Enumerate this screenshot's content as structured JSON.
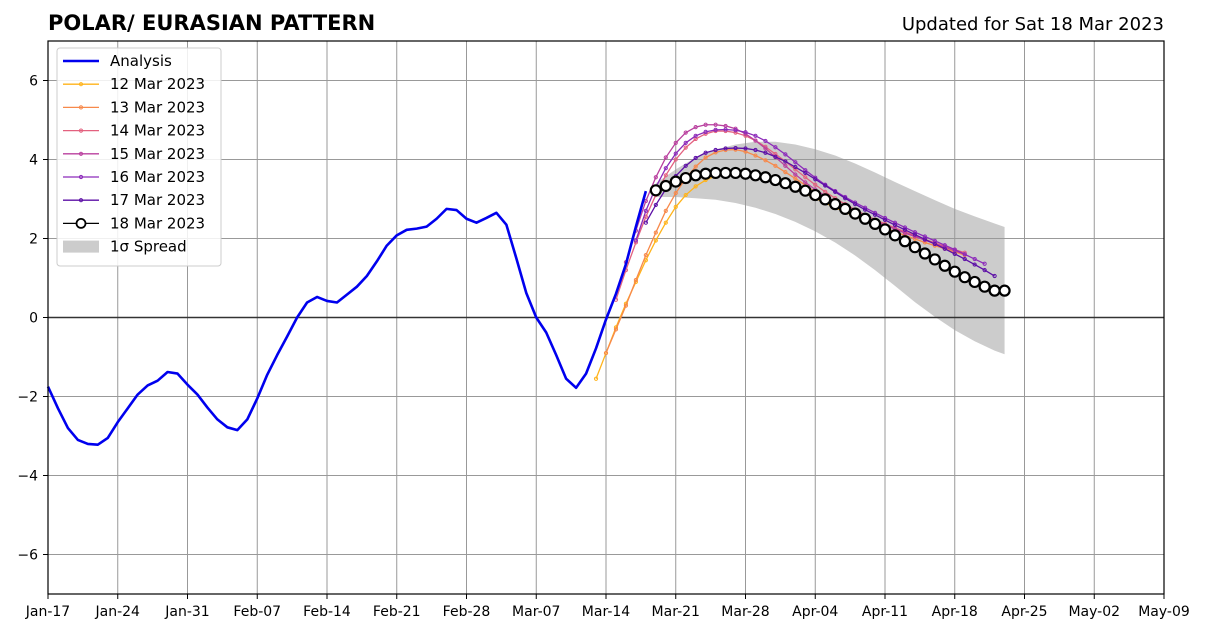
{
  "header": {
    "title": "POLAR/ EURASIAN  PATTERN",
    "updated": "Updated for Sat 18 Mar 2023"
  },
  "chart_data": {
    "type": "line",
    "title": "POLAR/ EURASIAN  PATTERN",
    "subtitle": "Updated for Sat 18 Mar 2023",
    "xlabel": "",
    "ylabel": "",
    "x_axis": {
      "type": "date",
      "range": [
        "2023-01-17",
        "2023-05-09"
      ],
      "ticks": [
        {
          "date": "2023-01-17",
          "label": "Jan-17"
        },
        {
          "date": "2023-01-24",
          "label": "Jan-24"
        },
        {
          "date": "2023-01-31",
          "label": "Jan-31"
        },
        {
          "date": "2023-02-07",
          "label": "Feb-07"
        },
        {
          "date": "2023-02-14",
          "label": "Feb-14"
        },
        {
          "date": "2023-02-21",
          "label": "Feb-21"
        },
        {
          "date": "2023-02-28",
          "label": "Feb-28"
        },
        {
          "date": "2023-03-07",
          "label": "Mar-07"
        },
        {
          "date": "2023-03-14",
          "label": "Mar-14"
        },
        {
          "date": "2023-03-21",
          "label": "Mar-21"
        },
        {
          "date": "2023-03-28",
          "label": "Mar-28"
        },
        {
          "date": "2023-04-04",
          "label": "Apr-04"
        },
        {
          "date": "2023-04-11",
          "label": "Apr-11"
        },
        {
          "date": "2023-04-18",
          "label": "Apr-18"
        },
        {
          "date": "2023-04-25",
          "label": "Apr-25"
        },
        {
          "date": "2023-05-02",
          "label": "May-02"
        },
        {
          "date": "2023-05-09",
          "label": "May-09"
        }
      ]
    },
    "y_axis": {
      "range": [
        -7,
        7
      ],
      "ticks": [
        {
          "value": -6,
          "label": "−6"
        },
        {
          "value": -4,
          "label": "−4"
        },
        {
          "value": -2,
          "label": "−2"
        },
        {
          "value": 0,
          "label": "0"
        },
        {
          "value": 2,
          "label": "2"
        },
        {
          "value": 4,
          "label": "4"
        },
        {
          "value": 6,
          "label": "6"
        }
      ]
    },
    "grid": true,
    "zero_line": true,
    "legend_position": "top-left",
    "legend": [
      {
        "key": "analysis",
        "label": "Analysis"
      },
      {
        "key": "f0312",
        "label": "12 Mar 2023"
      },
      {
        "key": "f0313",
        "label": "13 Mar 2023"
      },
      {
        "key": "f0314",
        "label": "14 Mar 2023"
      },
      {
        "key": "f0315",
        "label": "15 Mar 2023"
      },
      {
        "key": "f0316",
        "label": "16 Mar 2023"
      },
      {
        "key": "f0317",
        "label": "17 Mar 2023"
      },
      {
        "key": "f0318",
        "label": "18 Mar 2023"
      },
      {
        "key": "spread",
        "label": "1σ Spread"
      }
    ],
    "analysis": {
      "name": "Analysis",
      "color": "#0000ee",
      "x": [
        "2023-01-17",
        "2023-01-18",
        "2023-01-19",
        "2023-01-20",
        "2023-01-21",
        "2023-01-22",
        "2023-01-23",
        "2023-01-24",
        "2023-01-25",
        "2023-01-26",
        "2023-01-27",
        "2023-01-28",
        "2023-01-29",
        "2023-01-30",
        "2023-01-31",
        "2023-02-01",
        "2023-02-02",
        "2023-02-03",
        "2023-02-04",
        "2023-02-05",
        "2023-02-06",
        "2023-02-07",
        "2023-02-08",
        "2023-02-09",
        "2023-02-10",
        "2023-02-11",
        "2023-02-12",
        "2023-02-13",
        "2023-02-14",
        "2023-02-15",
        "2023-02-16",
        "2023-02-17",
        "2023-02-18",
        "2023-02-19",
        "2023-02-20",
        "2023-02-21",
        "2023-02-22",
        "2023-02-23",
        "2023-02-24",
        "2023-02-25",
        "2023-02-26",
        "2023-02-27",
        "2023-02-28",
        "2023-03-01",
        "2023-03-02",
        "2023-03-03",
        "2023-03-04",
        "2023-03-05",
        "2023-03-06",
        "2023-03-07",
        "2023-03-08",
        "2023-03-09",
        "2023-03-10",
        "2023-03-11",
        "2023-03-12",
        "2023-03-13",
        "2023-03-14",
        "2023-03-15",
        "2023-03-16",
        "2023-03-17",
        "2023-03-18"
      ],
      "y": [
        -1.75,
        -2.3,
        -2.8,
        -3.1,
        -3.2,
        -3.22,
        -3.05,
        -2.65,
        -2.3,
        -1.95,
        -1.72,
        -1.6,
        -1.38,
        -1.42,
        -1.7,
        -1.95,
        -2.28,
        -2.58,
        -2.78,
        -2.85,
        -2.58,
        -2.05,
        -1.45,
        -0.95,
        -0.48,
        0.0,
        0.38,
        0.52,
        0.42,
        0.38,
        0.58,
        0.78,
        1.05,
        1.42,
        1.82,
        2.08,
        2.22,
        2.25,
        2.3,
        2.5,
        2.75,
        2.72,
        2.5,
        2.4,
        2.52,
        2.65,
        2.35,
        1.5,
        0.62,
        0.0,
        -0.38,
        -0.95,
        -1.55,
        -1.78,
        -1.42,
        -0.78,
        -0.05,
        0.6,
        1.35,
        2.3,
        3.2
      ]
    },
    "forecasts": [
      {
        "name": "12 Mar 2023",
        "color": "#ffb31a",
        "x": [
          "2023-03-13",
          "2023-03-14",
          "2023-03-15",
          "2023-03-16",
          "2023-03-17",
          "2023-03-18",
          "2023-03-19",
          "2023-03-20",
          "2023-03-21",
          "2023-03-22",
          "2023-03-23",
          "2023-03-24",
          "2023-03-25",
          "2023-03-26",
          "2023-03-27",
          "2023-03-28",
          "2023-03-29",
          "2023-03-30",
          "2023-03-31",
          "2023-04-01",
          "2023-04-02",
          "2023-04-03",
          "2023-04-04",
          "2023-04-05",
          "2023-04-06",
          "2023-04-07",
          "2023-04-08",
          "2023-04-09",
          "2023-04-10",
          "2023-04-11"
        ],
        "y": [
          -1.55,
          -0.9,
          -0.25,
          0.35,
          0.9,
          1.45,
          1.95,
          2.4,
          2.8,
          3.1,
          3.32,
          3.48,
          3.58,
          3.63,
          3.65,
          3.62,
          3.58,
          3.52,
          3.45,
          3.36,
          3.26,
          3.14,
          3.02,
          2.9,
          2.78,
          2.67,
          2.56,
          2.46,
          2.37,
          2.28
        ]
      },
      {
        "name": "13 Mar 2023",
        "color": "#f7894b",
        "x": [
          "2023-03-14",
          "2023-03-15",
          "2023-03-16",
          "2023-03-17",
          "2023-03-18",
          "2023-03-19",
          "2023-03-20",
          "2023-03-21",
          "2023-03-22",
          "2023-03-23",
          "2023-03-24",
          "2023-03-25",
          "2023-03-26",
          "2023-03-27",
          "2023-03-28",
          "2023-03-29",
          "2023-03-30",
          "2023-03-31",
          "2023-04-01",
          "2023-04-02",
          "2023-04-03",
          "2023-04-04",
          "2023-04-05",
          "2023-04-06",
          "2023-04-07",
          "2023-04-08",
          "2023-04-09",
          "2023-04-10",
          "2023-04-11",
          "2023-04-12",
          "2023-04-13",
          "2023-04-14",
          "2023-04-15",
          "2023-04-16",
          "2023-04-17",
          "2023-04-18",
          "2023-04-19"
        ],
        "y": [
          -0.9,
          -0.3,
          0.3,
          0.95,
          1.58,
          2.15,
          2.7,
          3.15,
          3.52,
          3.82,
          4.05,
          4.18,
          4.24,
          4.25,
          4.2,
          4.1,
          3.98,
          3.84,
          3.68,
          3.52,
          3.35,
          3.18,
          3.02,
          2.87,
          2.73,
          2.6,
          2.48,
          2.37,
          2.27,
          2.17,
          2.08,
          1.99,
          1.9,
          1.82,
          1.74,
          1.66,
          1.58
        ]
      },
      {
        "name": "14 Mar 2023",
        "color": "#e3617f",
        "x": [
          "2023-03-15",
          "2023-03-16",
          "2023-03-17",
          "2023-03-18",
          "2023-03-19",
          "2023-03-20",
          "2023-03-21",
          "2023-03-22",
          "2023-03-23",
          "2023-03-24",
          "2023-03-25",
          "2023-03-26",
          "2023-03-27",
          "2023-03-28",
          "2023-03-29",
          "2023-03-30",
          "2023-03-31",
          "2023-04-01",
          "2023-04-02",
          "2023-04-03",
          "2023-04-04",
          "2023-04-05",
          "2023-04-06",
          "2023-04-07",
          "2023-04-08",
          "2023-04-09",
          "2023-04-10",
          "2023-04-11",
          "2023-04-12",
          "2023-04-13",
          "2023-04-14",
          "2023-04-15",
          "2023-04-16",
          "2023-04-17",
          "2023-04-18",
          "2023-04-19"
        ],
        "y": [
          0.45,
          1.2,
          1.9,
          2.55,
          3.1,
          3.6,
          4.0,
          4.3,
          4.52,
          4.65,
          4.72,
          4.72,
          4.68,
          4.6,
          4.48,
          4.32,
          4.14,
          3.95,
          3.75,
          3.55,
          3.36,
          3.18,
          3.02,
          2.87,
          2.73,
          2.6,
          2.48,
          2.37,
          2.27,
          2.17,
          2.07,
          1.98,
          1.89,
          1.8,
          1.72,
          1.64
        ]
      },
      {
        "name": "15 Mar 2023",
        "color": "#b93f9e",
        "x": [
          "2023-03-16",
          "2023-03-17",
          "2023-03-18",
          "2023-03-19",
          "2023-03-20",
          "2023-03-21",
          "2023-03-22",
          "2023-03-23",
          "2023-03-24",
          "2023-03-25",
          "2023-03-26",
          "2023-03-27",
          "2023-03-28",
          "2023-03-29",
          "2023-03-30",
          "2023-03-31",
          "2023-04-01",
          "2023-04-02",
          "2023-04-03",
          "2023-04-04",
          "2023-04-05",
          "2023-04-06",
          "2023-04-07",
          "2023-04-08",
          "2023-04-09",
          "2023-04-10",
          "2023-04-11",
          "2023-04-12",
          "2023-04-13",
          "2023-04-14",
          "2023-04-15",
          "2023-04-16",
          "2023-04-17",
          "2023-04-18",
          "2023-04-19"
        ],
        "y": [
          1.4,
          2.2,
          2.95,
          3.55,
          4.05,
          4.42,
          4.68,
          4.82,
          4.88,
          4.88,
          4.85,
          4.78,
          4.65,
          4.48,
          4.28,
          4.06,
          3.84,
          3.62,
          3.42,
          3.24,
          3.08,
          2.93,
          2.8,
          2.67,
          2.55,
          2.44,
          2.34,
          2.24,
          2.14,
          2.05,
          1.96,
          1.87,
          1.78,
          1.69,
          1.6
        ]
      },
      {
        "name": "16 Mar 2023",
        "color": "#8c2aba",
        "x": [
          "2023-03-17",
          "2023-03-18",
          "2023-03-19",
          "2023-03-20",
          "2023-03-21",
          "2023-03-22",
          "2023-03-23",
          "2023-03-24",
          "2023-03-25",
          "2023-03-26",
          "2023-03-27",
          "2023-03-28",
          "2023-03-29",
          "2023-03-30",
          "2023-03-31",
          "2023-04-01",
          "2023-04-02",
          "2023-04-03",
          "2023-04-04",
          "2023-04-05",
          "2023-04-06",
          "2023-04-07",
          "2023-04-08",
          "2023-04-09",
          "2023-04-10",
          "2023-04-11",
          "2023-04-12",
          "2023-04-13",
          "2023-04-14",
          "2023-04-15",
          "2023-04-16",
          "2023-04-17",
          "2023-04-18",
          "2023-04-19",
          "2023-04-20",
          "2023-04-21"
        ],
        "y": [
          1.95,
          2.7,
          3.3,
          3.78,
          4.15,
          4.42,
          4.6,
          4.7,
          4.75,
          4.76,
          4.74,
          4.69,
          4.6,
          4.47,
          4.31,
          4.13,
          3.93,
          3.73,
          3.54,
          3.36,
          3.2,
          3.05,
          2.91,
          2.78,
          2.65,
          2.52,
          2.4,
          2.28,
          2.16,
          2.05,
          1.94,
          1.83,
          1.72,
          1.6,
          1.48,
          1.36
        ]
      },
      {
        "name": "17 Mar 2023",
        "color": "#5c0fa6",
        "x": [
          "2023-03-18",
          "2023-03-19",
          "2023-03-20",
          "2023-03-21",
          "2023-03-22",
          "2023-03-23",
          "2023-03-24",
          "2023-03-25",
          "2023-03-26",
          "2023-03-27",
          "2023-03-28",
          "2023-03-29",
          "2023-03-30",
          "2023-03-31",
          "2023-04-01",
          "2023-04-02",
          "2023-04-03",
          "2023-04-04",
          "2023-04-05",
          "2023-04-06",
          "2023-04-07",
          "2023-04-08",
          "2023-04-09",
          "2023-04-10",
          "2023-04-11",
          "2023-04-12",
          "2023-04-13",
          "2023-04-14",
          "2023-04-15",
          "2023-04-16",
          "2023-04-17",
          "2023-04-18",
          "2023-04-19",
          "2023-04-20",
          "2023-04-21",
          "2023-04-22"
        ],
        "y": [
          2.4,
          2.85,
          3.25,
          3.58,
          3.84,
          4.04,
          4.17,
          4.24,
          4.28,
          4.29,
          4.28,
          4.24,
          4.17,
          4.07,
          3.95,
          3.81,
          3.66,
          3.5,
          3.34,
          3.18,
          3.02,
          2.87,
          2.73,
          2.6,
          2.47,
          2.34,
          2.22,
          2.1,
          1.98,
          1.86,
          1.74,
          1.61,
          1.48,
          1.34,
          1.2,
          1.05
        ]
      },
      {
        "name": "18 Mar 2023",
        "color": "#000000",
        "marker": "circle-open",
        "x": [
          "2023-03-19",
          "2023-03-20",
          "2023-03-21",
          "2023-03-22",
          "2023-03-23",
          "2023-03-24",
          "2023-03-25",
          "2023-03-26",
          "2023-03-27",
          "2023-03-28",
          "2023-03-29",
          "2023-03-30",
          "2023-03-31",
          "2023-04-01",
          "2023-04-02",
          "2023-04-03",
          "2023-04-04",
          "2023-04-05",
          "2023-04-06",
          "2023-04-07",
          "2023-04-08",
          "2023-04-09",
          "2023-04-10",
          "2023-04-11",
          "2023-04-12",
          "2023-04-13",
          "2023-04-14",
          "2023-04-15",
          "2023-04-16",
          "2023-04-17",
          "2023-04-18",
          "2023-04-19",
          "2023-04-20",
          "2023-04-21",
          "2023-04-22",
          "2023-04-23"
        ],
        "y": [
          3.22,
          3.33,
          3.44,
          3.53,
          3.6,
          3.64,
          3.66,
          3.66,
          3.66,
          3.64,
          3.6,
          3.55,
          3.48,
          3.4,
          3.31,
          3.21,
          3.1,
          2.99,
          2.87,
          2.75,
          2.63,
          2.5,
          2.37,
          2.23,
          2.08,
          1.93,
          1.78,
          1.62,
          1.47,
          1.31,
          1.16,
          1.02,
          0.9,
          0.78,
          0.68,
          0.68
        ]
      }
    ],
    "spread": {
      "name": "1σ Spread",
      "color": "#cccccc",
      "x": [
        "2023-03-19",
        "2023-03-21",
        "2023-03-23",
        "2023-03-25",
        "2023-03-27",
        "2023-03-29",
        "2023-03-31",
        "2023-04-02",
        "2023-04-04",
        "2023-04-06",
        "2023-04-08",
        "2023-04-10",
        "2023-04-12",
        "2023-04-14",
        "2023-04-16",
        "2023-04-18",
        "2023-04-20",
        "2023-04-22",
        "2023-04-23"
      ],
      "upper": [
        3.4,
        3.75,
        4.05,
        4.25,
        4.38,
        4.45,
        4.45,
        4.38,
        4.26,
        4.1,
        3.9,
        3.67,
        3.43,
        3.2,
        2.97,
        2.75,
        2.56,
        2.38,
        2.29
      ],
      "lower": [
        3.05,
        3.05,
        3.02,
        2.98,
        2.9,
        2.78,
        2.62,
        2.42,
        2.18,
        1.9,
        1.57,
        1.2,
        0.8,
        0.39,
        0.02,
        -0.32,
        -0.6,
        -0.84,
        -0.93
      ]
    }
  }
}
